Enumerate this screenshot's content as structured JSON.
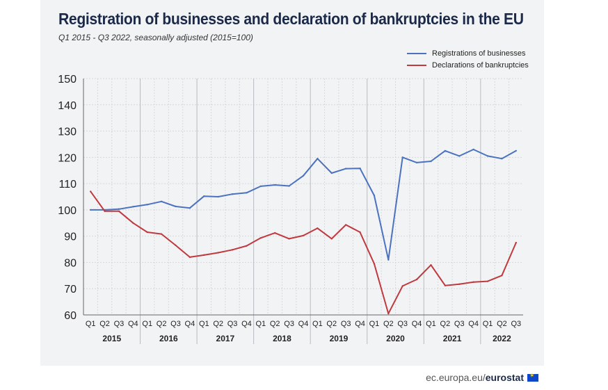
{
  "title": "Registration of businesses and declaration of bankruptcies in the EU",
  "subtitle": "Q1 2015 - Q3 2022, seasonally adjusted  (2015=100)",
  "footer": {
    "site": "ec.europa.eu/",
    "brand": "eurostat",
    "flag_icon": "eu-flag-icon"
  },
  "colors": {
    "registrations": "#4a72c0",
    "bankruptcies": "#c0393f",
    "axis": "#555555",
    "grid": "#d6d8dc"
  },
  "chart_data": {
    "type": "line",
    "title": "Registration of businesses and declaration of bankruptcies in the EU",
    "ylim": [
      60,
      150
    ],
    "yticks": [
      60,
      70,
      80,
      90,
      100,
      110,
      120,
      130,
      140,
      150
    ],
    "categories": [
      "Q1",
      "Q2",
      "Q3",
      "Q4",
      "Q1",
      "Q2",
      "Q3",
      "Q4",
      "Q1",
      "Q2",
      "Q3",
      "Q4",
      "Q1",
      "Q2",
      "Q3",
      "Q4",
      "Q1",
      "Q2",
      "Q3",
      "Q4",
      "Q1",
      "Q2",
      "Q3",
      "Q4",
      "Q1",
      "Q2",
      "Q3",
      "Q4",
      "Q1",
      "Q2",
      "Q3"
    ],
    "years": [
      {
        "label": "2015",
        "start": 0,
        "count": 4
      },
      {
        "label": "2016",
        "start": 4,
        "count": 4
      },
      {
        "label": "2017",
        "start": 8,
        "count": 4
      },
      {
        "label": "2018",
        "start": 12,
        "count": 4
      },
      {
        "label": "2019",
        "start": 16,
        "count": 4
      },
      {
        "label": "2020",
        "start": 20,
        "count": 4
      },
      {
        "label": "2021",
        "start": 24,
        "count": 4
      },
      {
        "label": "2022",
        "start": 28,
        "count": 3
      }
    ],
    "series": [
      {
        "name": "Registrations of businesses",
        "color": "#4a72c0",
        "values": [
          100,
          100,
          100.3,
          101.2,
          102,
          103.2,
          101.3,
          100.7,
          105.2,
          105,
          106,
          106.5,
          109,
          109.5,
          109.1,
          113,
          119.5,
          114,
          115.7,
          115.8,
          105.5,
          81,
          120,
          118,
          118.5,
          122.5,
          120.5,
          123,
          120.5,
          119.5,
          122.5
        ]
      },
      {
        "name": "Declarations of bankruptcies",
        "color": "#c0393f",
        "values": [
          107,
          99.5,
          99.5,
          95,
          91.5,
          90.8,
          86.5,
          82,
          82.8,
          83.7,
          84.8,
          86.3,
          89.3,
          91.2,
          89,
          90.2,
          93,
          89,
          94.3,
          91.5,
          79.5,
          60.5,
          71,
          73.5,
          79,
          71.2,
          71.7,
          72.5,
          72.8,
          75,
          87.5
        ]
      }
    ]
  }
}
